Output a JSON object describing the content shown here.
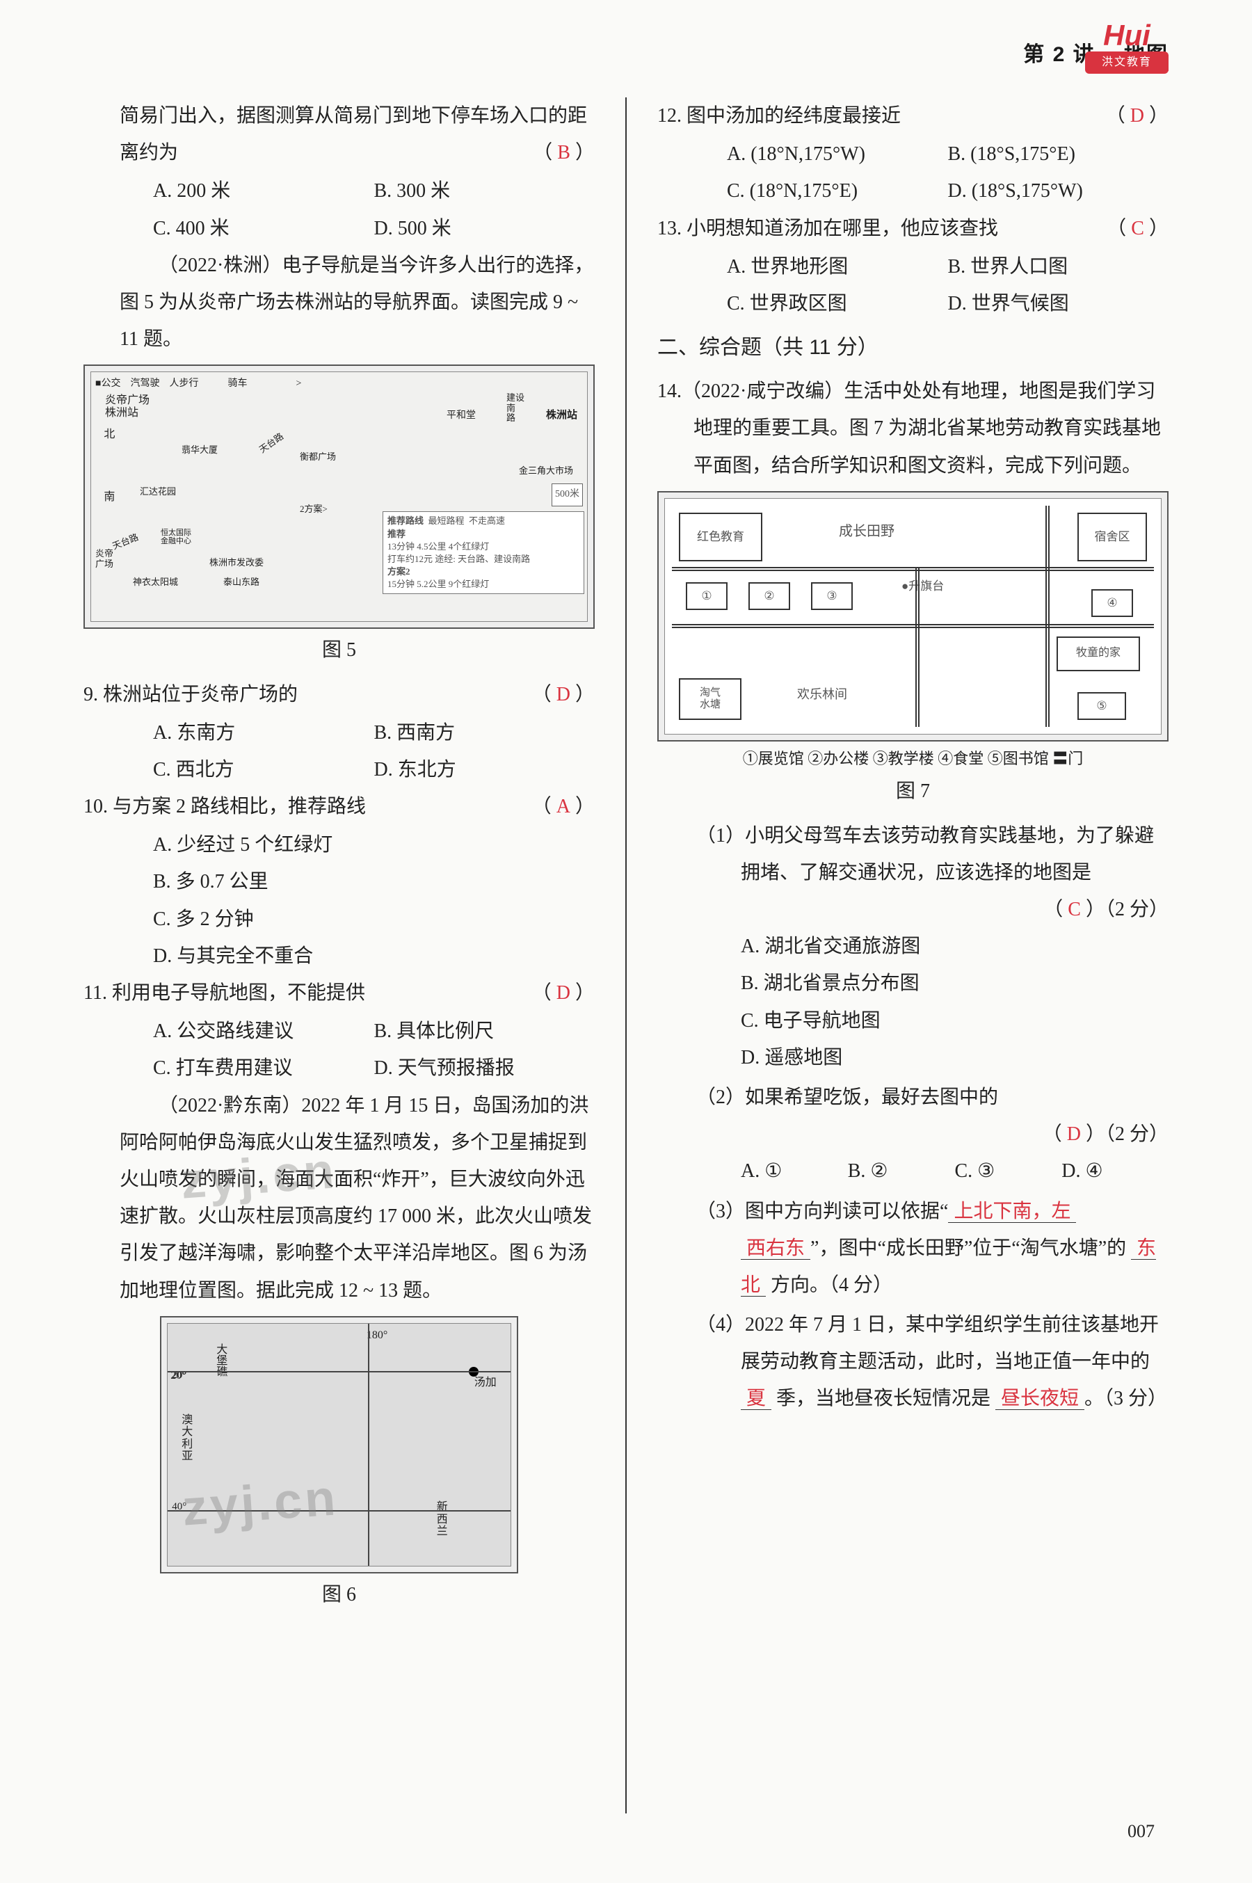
{
  "header": {
    "lesson": "第 2 讲",
    "topic": "地图"
  },
  "logo": {
    "main": "Hui",
    "sub": "洪文教育"
  },
  "left": {
    "q8_stem": "简易门出入，据图测算从简易门到地下停车场入口的距离约为",
    "q8_ans": "B",
    "q8_opts": {
      "A": "A. 200 米",
      "B": "B. 300 米",
      "C": "C. 400 米",
      "D": "D. 500 米"
    },
    "ctx5_a": "（2022·株洲）电子导航是当今许多人出行的选择，图 5 为从炎帝广场去株洲站的导航界面。读图完成 9 ~ 11 题。",
    "fig5_caption": "图 5",
    "map5": {
      "tabs": "■公交　汽驾驶　人步行　　　骑车　　　　　>",
      "yandi": "炎帝广场",
      "zhuzhou": "株洲站",
      "pinghe": "平和堂",
      "jianshe": "建设/南/路",
      "tiantai": "天台路",
      "hengdu": "衡都广场",
      "compass_n": "北",
      "compass_s": "南",
      "huida": "汇达花园",
      "cuihua": "翡华大厦",
      "jinsanjiao": "金三角大市场",
      "scale": "500米",
      "fangan2hint": "2方案>",
      "col_h1": "推荐路线",
      "col_h2": "最短路程",
      "col_h3": "不走高速",
      "rec": "推荐",
      "rec_l1": "13分钟  4.5公里  4个红绿灯",
      "rec_l2": "打车约12元   途经: 天台路、建设南路",
      "f2": "方案2",
      "f2_l1": "15分钟  5.2公里  9个红绿灯",
      "hengtai": "恒太国际/金融中心",
      "shenyang": "神衣太阳城",
      "taishan": "泰山东路",
      "fagaiwei": "株洲市发改委",
      "yandi2": "炎帝/广场"
    },
    "q9_stem": "9. 株洲站位于炎帝广场的",
    "q9_ans": "D",
    "q9_opts": {
      "A": "A. 东南方",
      "B": "B. 西南方",
      "C": "C. 西北方",
      "D": "D. 东北方"
    },
    "q10_stem": "10. 与方案 2 路线相比，推荐路线",
    "q10_ans": "A",
    "q10_opts": {
      "A": "A. 少经过 5 个红绿灯",
      "B": "B. 多 0.7 公里",
      "C": "C. 多 2 分钟",
      "D": "D. 与其完全不重合"
    },
    "q11_stem": "11. 利用电子导航地图，不能提供",
    "q11_ans": "D",
    "q11_opts": {
      "A": "A. 公交路线建议",
      "B": "B. 具体比例尺",
      "C": "C. 打车费用建议",
      "D": "D. 天气预报播报"
    },
    "ctx6_a": "（2022·黔东南）2022 年 1 月 15 日，岛国汤加的洪阿哈阿帕伊岛海底火山发生猛烈喷发，多个卫星捕捉到火山喷发的瞬间，海面大面积“炸开”，巨大波纹向外迅速扩散。火山灰柱层顶高度约 17 000 米，此次火山喷发引发了越洋海啸，影响整个太平洋沿岸地区。图 6 为汤加地理位置图。据此完成 12 ~ 13 题。",
    "fig6_caption": "图 6",
    "map6": {
      "lon": "180°",
      "lat20": "20°",
      "lat40": "40°",
      "dabao": "大/堡/礁",
      "tangjia": "汤加",
      "aus": "澳/大/利/亚",
      "xin": "新/西/兰"
    },
    "watermark": "zyj.cn"
  },
  "right": {
    "q12_stem": "12. 图中汤加的经纬度最接近",
    "q12_ans": "D",
    "q12_opts": {
      "A": "A. (18°N,175°W)",
      "B": "B. (18°S,175°E)",
      "C": "C. (18°N,175°E)",
      "D": "D. (18°S,175°W)"
    },
    "q13_stem": "13. 小明想知道汤加在哪里，他应该查找",
    "q13_ans": "C",
    "q13_opts": {
      "A": "A. 世界地形图",
      "B": "B. 世界人口图",
      "C": "C. 世界政区图",
      "D": "D. 世界气候图"
    },
    "section2": "二、综合题（共 11 分）",
    "q14_stem": "14.（2022·咸宁改编）生活中处处有地理，地图是我们学习地理的重要工具。图 7 为湖北省某地劳动教育实践基地平面图，结合所学知识和图文资料，完成下列问题。",
    "fig7_caption": "图 7",
    "map7": {
      "hongse": "红色教育",
      "tianye": "成长田野",
      "sushe": "宿舍区",
      "shengqi": "升旗台",
      "taoqi": "淘气/水塘",
      "huanle": "欢乐林间",
      "mutong": "牧童的家",
      "n1": "①",
      "n2": "②",
      "n3": "③",
      "n4": "④",
      "n5": "⑤",
      "legend": "①展览馆  ②办公楼  ③教学楼  ④食堂  ⑤图书馆  〓门"
    },
    "q14_1": "（1）小明父母驾车去该劳动教育实践基地，为了躲避拥堵、了解交通状况，应该选择的地图是",
    "q14_1_ans": "C",
    "q14_1_pts": "（2 分）",
    "q14_1_opts": {
      "A": "A. 湖北省交通旅游图",
      "B": "B. 湖北省景点分布图",
      "C": "C. 电子导航地图",
      "D": "D. 遥感地图"
    },
    "q14_2": "（2）如果希望吃饭，最好去图中的",
    "q14_2_ans": "D",
    "q14_2_pts": "（2 分）",
    "q14_2_opts": {
      "A": "A. ①",
      "B": "B. ②",
      "C": "C. ③",
      "D": "D. ④"
    },
    "q14_3a": "（3）图中方向判读可以依据“",
    "q14_3blank1": "上北下南，左",
    "q14_3blank1b": "西右东",
    "q14_3b": "”，图中“成长田野”位于“淘气水塘”的",
    "q14_3blank2": "东北",
    "q14_3c": "方向。（4 分）",
    "q14_4a": "（4）2022 年 7 月 1 日，某中学组织学生前往该基地开展劳动教育主题活动，此时，当地正值一年中的",
    "q14_4blank1": "夏",
    "q14_4b": "季，当地昼夜长短情况是",
    "q14_4blank2": "昼长夜短",
    "q14_4c": "。（3 分）"
  },
  "pagenum": "007"
}
